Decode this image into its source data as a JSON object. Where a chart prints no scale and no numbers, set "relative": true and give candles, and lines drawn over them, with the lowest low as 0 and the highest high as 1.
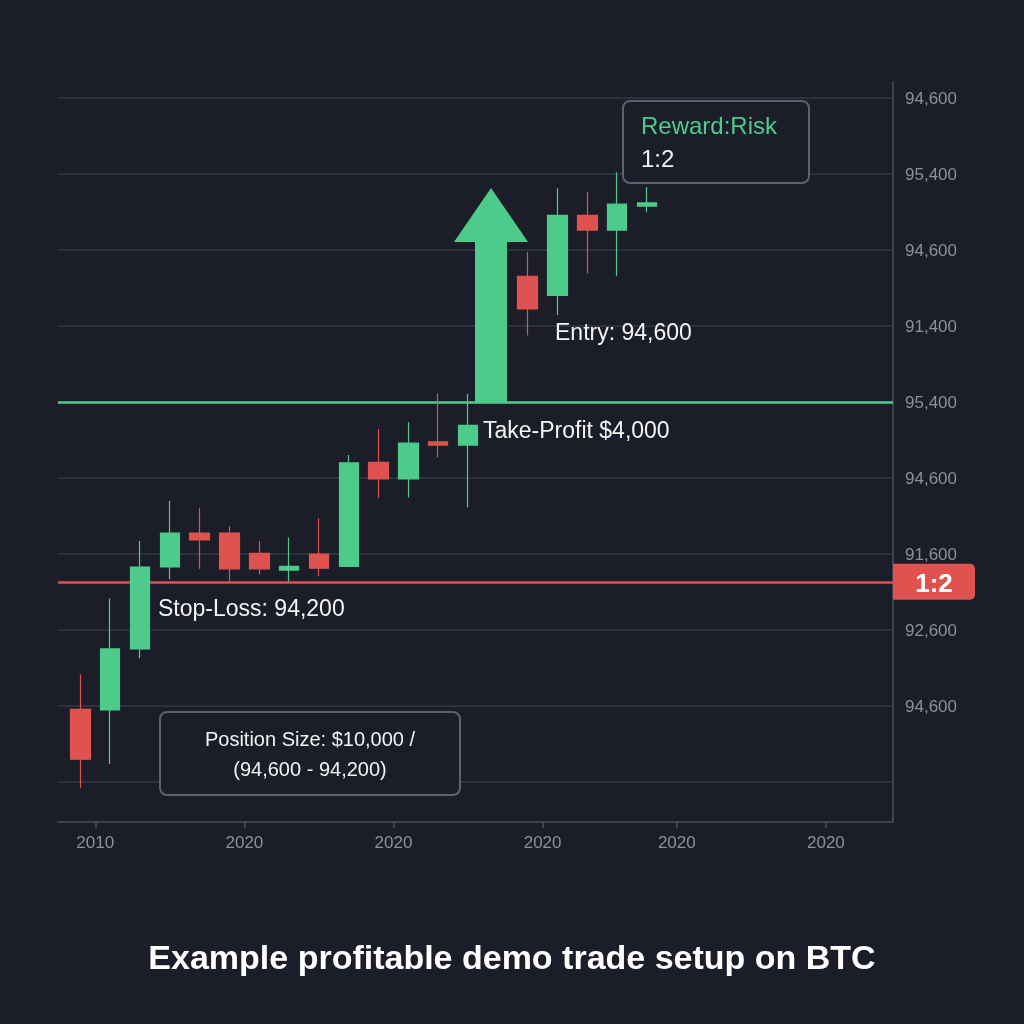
{
  "chart_data": {
    "type": "candlestick",
    "title": "Example profitable demo trade setup on BTC",
    "relative": true,
    "categories": [
      null,
      null,
      "2010",
      null,
      null,
      null,
      null,
      null,
      null,
      null,
      null,
      null,
      "2020",
      null,
      null,
      null,
      null,
      null,
      null,
      null,
      null,
      null,
      "2020",
      null,
      null,
      null,
      null,
      null,
      null,
      null,
      null,
      null,
      "2020",
      null,
      null,
      null,
      null,
      null,
      null,
      null,
      null,
      "2020",
      null,
      null,
      null,
      null,
      null,
      null,
      null,
      null,
      null,
      "2020",
      null,
      null,
      null,
      null
    ],
    "ohlc": [
      null,
      [
        0.128,
        0.185,
        0,
        0.047
      ],
      null,
      [
        0.127,
        0.308,
        0.039,
        0.226
      ],
      null,
      [
        0.226,
        0.401,
        0.211,
        0.359
      ],
      null,
      [
        0.359,
        0.466,
        0.339,
        0.414
      ],
      null,
      [
        0.414,
        0.455,
        0.356,
        0.403
      ],
      null,
      [
        0.414,
        0.425,
        0.336,
        0.356
      ],
      null,
      [
        0.381,
        0.401,
        0.347,
        0.356
      ],
      null,
      [
        0.354,
        0.407,
        0.336,
        0.36
      ],
      null,
      [
        0.38,
        0.438,
        0.344,
        0.357
      ],
      null,
      [
        0.36,
        0.541,
        0.36,
        0.528
      ],
      null,
      [
        0.529,
        0.583,
        0.471,
        0.502
      ],
      null,
      [
        0.502,
        0.594,
        0.472,
        0.56
      ],
      null,
      [
        0.562,
        0.641,
        0.537,
        0.557
      ],
      null,
      [
        0.557,
        0.64,
        0.456,
        0.589
      ],
      null,
      null,
      null,
      [
        0.831,
        0.87,
        0.735,
        0.778
      ],
      null,
      [
        0.8,
        0.974,
        0.768,
        0.93
      ],
      null,
      [
        0.93,
        0.968,
        0.836,
        0.906
      ],
      null,
      [
        0.906,
        1,
        0.831,
        0.948
      ],
      null,
      [
        0.945,
        0.976,
        0.935,
        0.95
      ],
      null,
      null,
      null,
      null,
      null,
      null,
      null,
      null,
      null,
      null,
      null,
      null,
      null,
      null,
      null,
      null
    ],
    "colors": [
      null,
      "#e0524f",
      null,
      "#4dcb8b",
      null,
      "#4dcb8b",
      null,
      "#4dcb8b",
      null,
      "#e0524f",
      null,
      "#e0524f",
      null,
      "#e0524f",
      null,
      "#4dcb8b",
      null,
      "#e0524f",
      null,
      "#4dcb8b",
      null,
      "#e0524f",
      null,
      "#4dcb8b",
      null,
      "#e0524f",
      null,
      "#4dcb8b",
      null,
      null,
      null,
      "#e0524f",
      null,
      "#4dcb8b",
      null,
      "#e0524f",
      null,
      "#4dcb8b",
      null,
      "#4dcb8b",
      null,
      null,
      null,
      null,
      null,
      null,
      null,
      null,
      null,
      null,
      null,
      null,
      null,
      null,
      null,
      null
    ],
    "grid": "y",
    "ref_lines": [
      {
        "axis": "y",
        "value": 0.627,
        "color": "#4dcb8b"
      },
      {
        "axis": "y",
        "value": 0.335,
        "color": "#e0524f"
      }
    ],
    "annotations": [
      "94,600",
      "95,400",
      "94,600",
      "91,400",
      "95,400",
      "94,600",
      "91,600",
      "92,600",
      "94,600",
      "Reward:Risk\n1:2",
      "Entry: 94,600",
      "Take-Profit $4,000",
      "Stop-Loss: 94,200",
      "1:2",
      "Position Size: $10,000 /\n(94,600 - 94,200)"
    ]
  }
}
